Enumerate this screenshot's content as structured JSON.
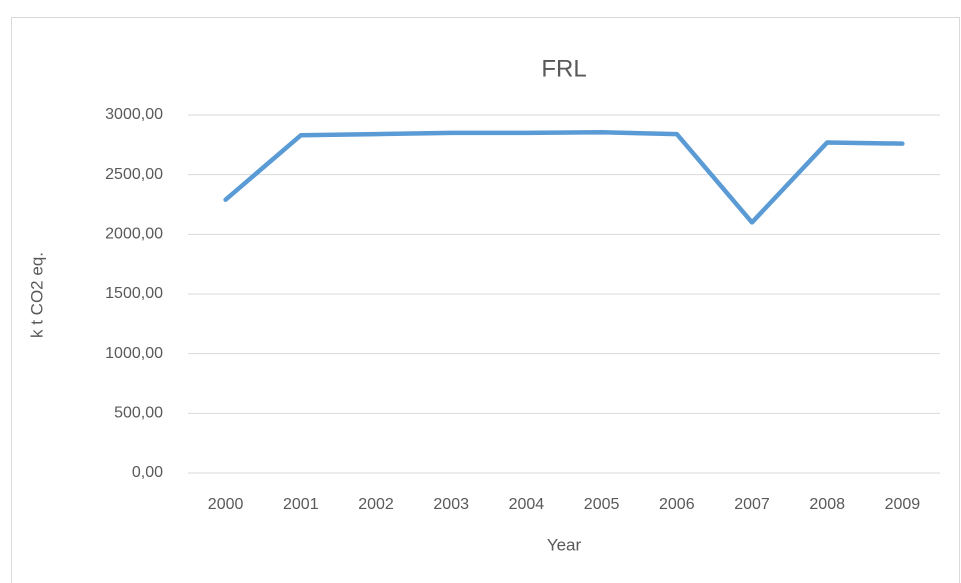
{
  "chart_data": {
    "type": "line",
    "title": "FRL",
    "x_label": "Year",
    "y_label": "k t CO2 eq.",
    "categories": [
      "2000",
      "2001",
      "2002",
      "2003",
      "2004",
      "2005",
      "2006",
      "2007",
      "2008",
      "2009"
    ],
    "series": [
      {
        "name": "FRL",
        "color": "#5b9bd5",
        "values": [
          2290,
          2830,
          2840,
          2850,
          2850,
          2855,
          2840,
          2100,
          2770,
          2760
        ]
      }
    ],
    "ylim": [
      0,
      3000
    ],
    "yticks": [
      {
        "value": 0,
        "label": "0,00"
      },
      {
        "value": 500,
        "label": "500,00"
      },
      {
        "value": 1000,
        "label": "1000,00"
      },
      {
        "value": 1500,
        "label": "1500,00"
      },
      {
        "value": 2000,
        "label": "2000,00"
      },
      {
        "value": 2500,
        "label": "2500,00"
      },
      {
        "value": 3000,
        "label": "3000,00"
      }
    ],
    "grid": true
  }
}
